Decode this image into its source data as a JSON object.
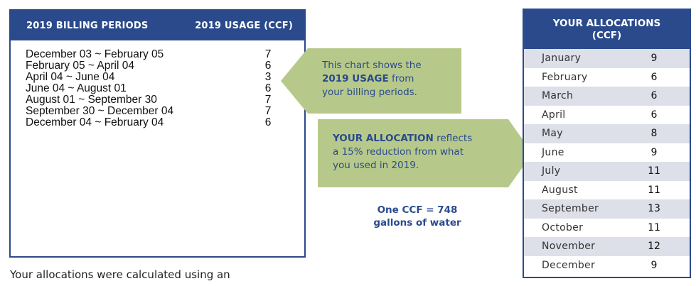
{
  "billing": {
    "header_periods": "2019 BILLING PERIODS",
    "header_usage": "2019 USAGE (CCF)",
    "rows": [
      {
        "period": "December 03 ~ February 05",
        "usage": "7"
      },
      {
        "period": "February 05 ~ April 04",
        "usage": "6"
      },
      {
        "period": "April 04 ~ June 04",
        "usage": "3"
      },
      {
        "period": "June 04 ~ August 01",
        "usage": "6"
      },
      {
        "period": "August 01 ~ September 30",
        "usage": "7"
      },
      {
        "period": "September 30 ~ December 04",
        "usage": "7"
      },
      {
        "period": "December 04 ~ February 04",
        "usage": "6"
      }
    ]
  },
  "callout_usage": {
    "line1": "This chart shows the",
    "line2_bold": "2019 USAGE",
    "line2_rest": " from",
    "line3": "your billing periods."
  },
  "callout_allocation": {
    "line1_bold": "YOUR ALLOCATION",
    "line1_rest": " reflects",
    "line2": "a 15% reduction from what",
    "line3": "you used in 2019."
  },
  "ccf_note": {
    "line1": "One CCF = 748",
    "line2": "gallons of water"
  },
  "allocations": {
    "header_line1": "YOUR ALLOCATIONS",
    "header_line2": "(CCF)",
    "rows": [
      {
        "month": "January",
        "value": "9",
        "shaded": true
      },
      {
        "month": "February",
        "value": "6",
        "shaded": false
      },
      {
        "month": "March",
        "value": "6",
        "shaded": true
      },
      {
        "month": "April",
        "value": "6",
        "shaded": false
      },
      {
        "month": "May",
        "value": "8",
        "shaded": true
      },
      {
        "month": "June",
        "value": "9",
        "shaded": false
      },
      {
        "month": "July",
        "value": "11",
        "shaded": true
      },
      {
        "month": "August",
        "value": "11",
        "shaded": false
      },
      {
        "month": "September",
        "value": "13",
        "shaded": true
      },
      {
        "month": "October",
        "value": "11",
        "shaded": false
      },
      {
        "month": "November",
        "value": "12",
        "shaded": true
      },
      {
        "month": "December",
        "value": "9",
        "shaded": false
      }
    ]
  },
  "footer_text": "Your allocations were calculated using an",
  "colors": {
    "navy": "#2a4a8c",
    "green": "#b7c98a",
    "row_shade": "#dde0e8"
  }
}
